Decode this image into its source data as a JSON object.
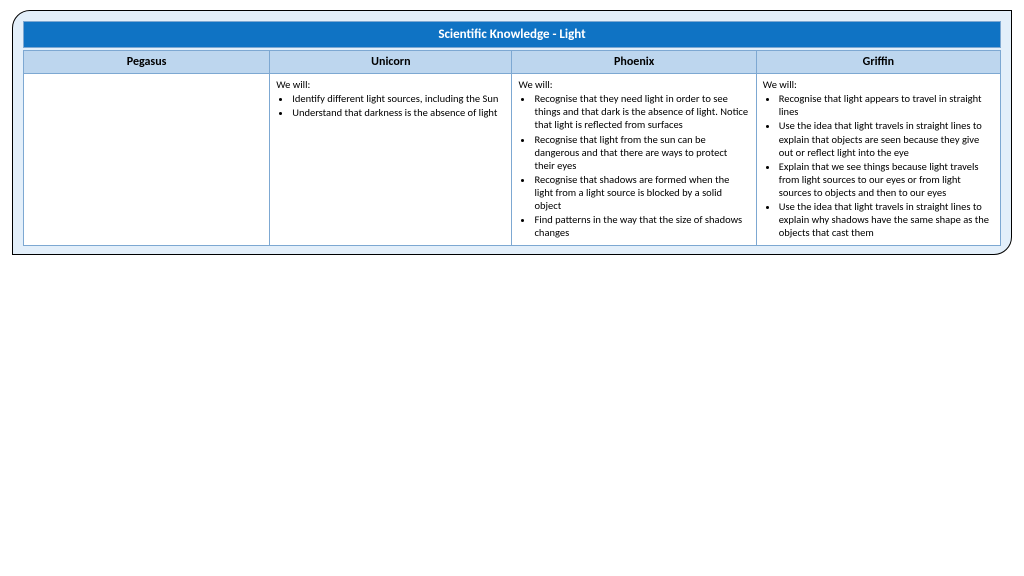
{
  "title": "Scientific Knowledge - Light",
  "columns": [
    "Pegasus",
    "Unicorn",
    "Phoenix",
    "Griffin"
  ],
  "intro": "We will:",
  "cells": {
    "pegasus": {
      "empty": true
    },
    "unicorn": {
      "items": [
        "Identify different light sources, including the Sun",
        "Understand that darkness is the absence of light"
      ]
    },
    "phoenix": {
      "items": [
        "Recognise that they need light in order to see things and that dark is the absence of light. Notice that light is reflected from surfaces",
        "Recognise that light from the sun can be dangerous and that there are ways to protect their eyes",
        "Recognise that shadows are formed when the light from a light source is blocked by a solid object",
        "Find patterns in the way that the size of shadows changes"
      ]
    },
    "griffin": {
      "items": [
        "Recognise that light appears to travel in straight lines",
        "Use the idea that light travels in straight lines to explain that objects are seen because they give out or reflect light into the eye",
        "Explain that we see things because light travels from light sources to our eyes or from light sources to objects and then to our eyes",
        "Use the idea that light travels in straight lines to explain why shadows have the same shape as the objects that cast them"
      ]
    }
  },
  "colors": {
    "frame_bg": "#e3effa",
    "title_bg": "#0f73c4",
    "title_text": "#ffffff",
    "header_bg": "#bdd6ee",
    "cell_bg": "#ffffff",
    "border": "#7da8d2",
    "frame_border": "#000000"
  }
}
